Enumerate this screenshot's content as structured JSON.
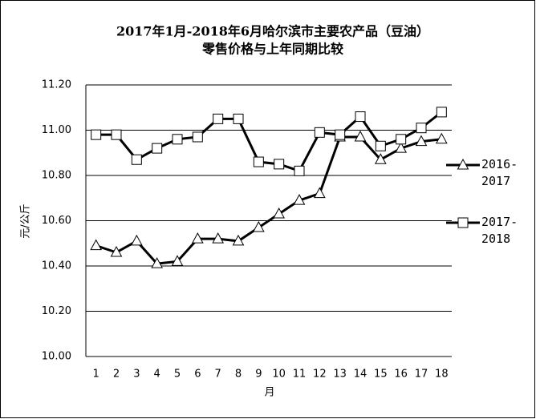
{
  "chart_data": {
    "type": "line",
    "title": [
      "2017年1月-2018年6月哈尔滨市主要农产品（豆油）",
      "零售价格与上年同期比较"
    ],
    "xlabel": "月",
    "ylabel": "元/公斤",
    "categories": [
      "1",
      "2",
      "3",
      "4",
      "5",
      "6",
      "7",
      "8",
      "9",
      "10",
      "11",
      "12",
      "13",
      "14",
      "15",
      "16",
      "17",
      "18"
    ],
    "series": [
      {
        "name": "2016-2017",
        "color": "#000000",
        "marker": "triangle",
        "values": [
          10.49,
          10.46,
          10.51,
          10.41,
          10.42,
          10.52,
          10.52,
          10.51,
          10.57,
          10.63,
          10.69,
          10.72,
          10.97,
          10.97,
          10.87,
          10.92,
          10.95,
          10.96
        ]
      },
      {
        "name": "2017-2018",
        "color": "#000000",
        "marker": "square",
        "values": [
          10.98,
          10.98,
          10.87,
          10.92,
          10.96,
          10.97,
          11.05,
          11.05,
          10.86,
          10.85,
          10.82,
          10.99,
          10.98,
          11.06,
          10.93,
          10.96,
          11.01,
          11.08
        ]
      }
    ],
    "ylim": [
      10.0,
      11.2
    ],
    "yticks": [
      {
        "value": 10.0,
        "label": "10.00"
      },
      {
        "value": 10.2,
        "label": "10.20"
      },
      {
        "value": 10.4,
        "label": "10.40"
      },
      {
        "value": 10.6,
        "label": "10.60"
      },
      {
        "value": 10.8,
        "label": "10.80"
      },
      {
        "value": 11.0,
        "label": "11.00"
      },
      {
        "value": 11.2,
        "label": "11.20"
      }
    ],
    "grid": true,
    "legend": "right"
  }
}
